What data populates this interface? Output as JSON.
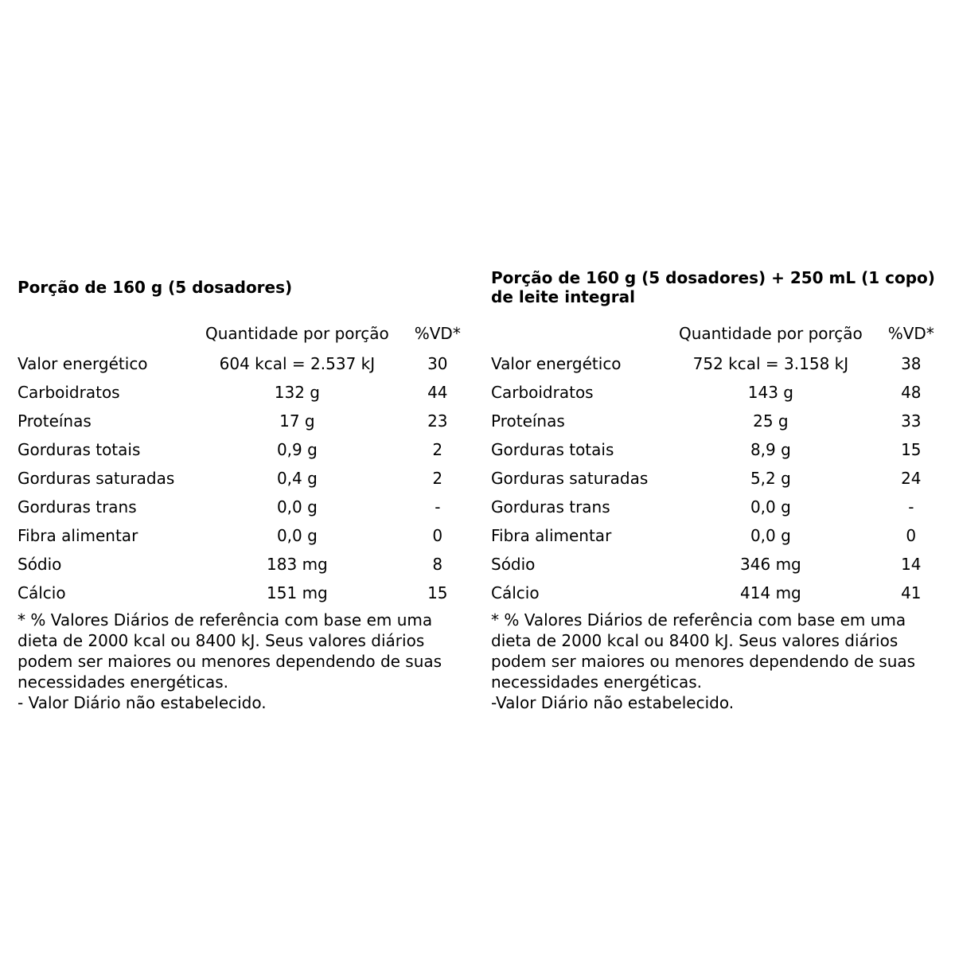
{
  "page": {
    "background_color": "#ffffff",
    "text_color": "#000000"
  },
  "tables": [
    {
      "title": "Porção de 160 g (5 dosadores)",
      "columns": {
        "quantity_header": "Quantidade por porção",
        "dv_header": "%VD*"
      },
      "rows": [
        {
          "label": "Valor energético",
          "quantity": "604 kcal = 2.537 kJ",
          "dv": "30"
        },
        {
          "label": "Carboidratos",
          "quantity": "132 g",
          "dv": "44"
        },
        {
          "label": "Proteínas",
          "quantity": "17 g",
          "dv": "23"
        },
        {
          "label": "Gorduras totais",
          "quantity": "0,9 g",
          "dv": "2"
        },
        {
          "label": "Gorduras saturadas",
          "quantity": "0,4 g",
          "dv": "2"
        },
        {
          "label": "Gorduras trans",
          "quantity": "0,0 g",
          "dv": "-"
        },
        {
          "label": "Fibra alimentar",
          "quantity": "0,0 g",
          "dv": "0"
        },
        {
          "label": "Sódio",
          "quantity": "183 mg",
          "dv": "8"
        },
        {
          "label": "Cálcio",
          "quantity": "151 mg",
          "dv": "15"
        }
      ],
      "footnote": "* % Valores Diários de referência com base em uma dieta de 2000 kcal ou 8400 kJ. Seus valores diários podem ser maiores ou menores dependendo de suas necessidades energéticas.",
      "dash_note": "- Valor Diário não estabelecido."
    },
    {
      "title": "Porção de 160 g (5 dosadores) + 250 mL (1 copo) de leite integral",
      "columns": {
        "quantity_header": "Quantidade por porção",
        "dv_header": "%VD*"
      },
      "rows": [
        {
          "label": "Valor energético",
          "quantity": "752 kcal = 3.158 kJ",
          "dv": "38"
        },
        {
          "label": "Carboidratos",
          "quantity": "143 g",
          "dv": "48"
        },
        {
          "label": "Proteínas",
          "quantity": "25 g",
          "dv": "33"
        },
        {
          "label": "Gorduras totais",
          "quantity": "8,9 g",
          "dv": "15"
        },
        {
          "label": "Gorduras saturadas",
          "quantity": "5,2 g",
          "dv": "24"
        },
        {
          "label": "Gorduras trans",
          "quantity": "0,0 g",
          "dv": "-"
        },
        {
          "label": "Fibra alimentar",
          "quantity": "0,0 g",
          "dv": "0"
        },
        {
          "label": "Sódio",
          "quantity": "346 mg",
          "dv": "14"
        },
        {
          "label": "Cálcio",
          "quantity": "414 mg",
          "dv": "41"
        }
      ],
      "footnote": "* % Valores Diários de referência com base em uma dieta de 2000 kcal ou 8400 kJ. Seus valores diários podem ser maiores ou menores dependendo de suas necessidades energéticas.",
      "dash_note": "-Valor Diário não estabelecido."
    }
  ]
}
